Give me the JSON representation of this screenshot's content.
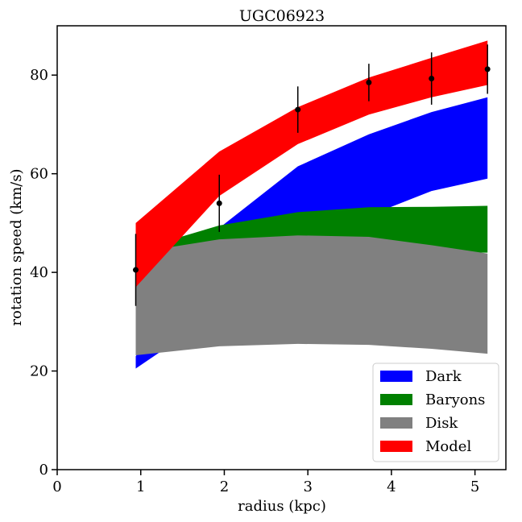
{
  "chart_data": {
    "type": "area",
    "title": "UGC06923",
    "xlabel": "radius (kpc)",
    "ylabel": "rotation speed (km/s)",
    "xlim": [
      0,
      5.37
    ],
    "ylim": [
      0,
      90
    ],
    "x_ticks": [
      0,
      1,
      2,
      3,
      4,
      5
    ],
    "y_ticks": [
      0,
      20,
      40,
      60,
      80
    ],
    "grid": false,
    "legend_position": "bottom-right",
    "x": [
      0.94,
      1.94,
      2.88,
      3.73,
      4.48,
      5.15
    ],
    "series": [
      {
        "name": "Dark",
        "color": "#0000ff",
        "lower": [
          20.5,
          32.0,
          44.0,
          51.5,
          56.5,
          59.0
        ],
        "upper": [
          23.0,
          49.0,
          61.5,
          68.0,
          72.5,
          75.5
        ]
      },
      {
        "name": "Baryons",
        "color": "#008000",
        "lower": [
          37.0,
          44.0,
          44.0,
          44.0,
          44.0,
          44.0
        ],
        "upper": [
          44.5,
          49.5,
          52.2,
          53.2,
          53.3,
          53.5
        ]
      },
      {
        "name": "Disk",
        "color": "#808080",
        "lower": [
          23.2,
          25.0,
          25.5,
          25.3,
          24.5,
          23.5
        ],
        "upper": [
          44.0,
          46.7,
          47.5,
          47.2,
          45.5,
          43.8
        ]
      },
      {
        "name": "Model",
        "color": "#ff0000",
        "lower": [
          37.0,
          55.5,
          66.0,
          72.0,
          75.5,
          78.0
        ],
        "upper": [
          50.0,
          64.5,
          73.5,
          79.5,
          83.5,
          87.0
        ]
      }
    ],
    "observations": {
      "x": [
        0.94,
        1.94,
        2.88,
        3.73,
        4.48,
        5.15
      ],
      "y": [
        40.5,
        54.0,
        73.0,
        78.5,
        79.3,
        81.2
      ],
      "err": [
        7.3,
        5.8,
        4.7,
        3.8,
        5.3,
        5.0
      ]
    }
  }
}
